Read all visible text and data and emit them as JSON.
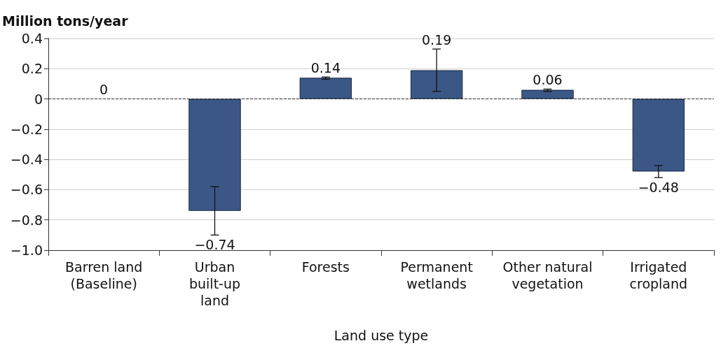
{
  "chart_data": {
    "type": "bar",
    "ylabel": "Million tons/year",
    "xlabel": "Land use type",
    "categories": [
      "Barren land\n(Baseline)",
      "Urban\nbuilt-up\nland",
      "Forests",
      "Permanent\nwetlands",
      "Other natural\nvegetation",
      "Irrigated\ncropland"
    ],
    "values": [
      0,
      -0.74,
      0.14,
      0.19,
      0.06,
      -0.48
    ],
    "value_labels": [
      "0",
      "−0.74",
      "0.14",
      "0.19",
      "0.06",
      "−0.48"
    ],
    "errors": [
      null,
      [
        -0.9,
        -0.58
      ],
      [
        0.13,
        0.145
      ],
      [
        0.05,
        0.33
      ],
      [
        0.05,
        0.065
      ],
      [
        -0.52,
        -0.44
      ]
    ],
    "color": "#3b5785",
    "ylim": [
      -1.0,
      0.4
    ],
    "yticks": [
      {
        "value": -1.0,
        "label": "−1.0"
      },
      {
        "value": -0.8,
        "label": "−0.8"
      },
      {
        "value": -0.6,
        "label": "−0.6"
      },
      {
        "value": -0.4,
        "label": "−0.4"
      },
      {
        "value": -0.2,
        "label": "−0.2"
      },
      0,
      0.2,
      0.4
    ],
    "ref_lines": [
      {
        "axis": "y",
        "value": 0,
        "line_style": "dashed",
        "color": "#333333"
      }
    ],
    "grid": "y"
  }
}
